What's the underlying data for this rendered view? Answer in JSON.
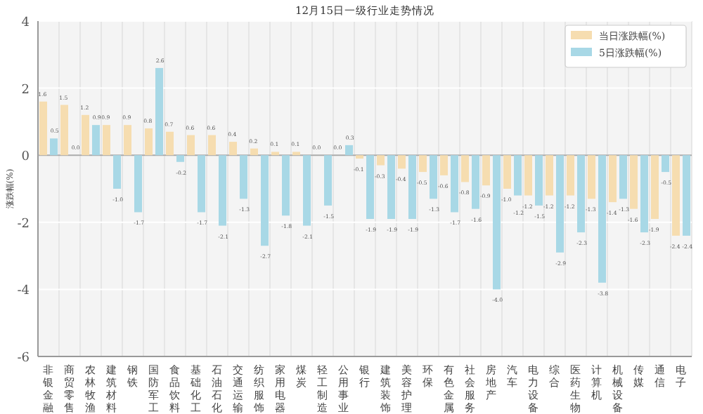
{
  "chart_data": {
    "type": "bar",
    "title": "12月15日一级行业走势情况",
    "ylabel": "涨跌幅(%)",
    "categories": [
      "非银金融",
      "商贸零售",
      "农林牧渔",
      "建筑材料",
      "钢铁",
      "国防军工",
      "食品饮料",
      "基础化工",
      "石油石化",
      "交通运输",
      "纺织服饰",
      "家用电器",
      "煤炭",
      "轻工制造",
      "公用事业",
      "银行",
      "建筑装饰",
      "美容护理",
      "环保",
      "有色金属",
      "社会服务",
      "房地产",
      "汽车",
      "电力设备",
      "综合",
      "医药生物",
      "计算机",
      "机械设备",
      "传媒",
      "通信",
      "电子"
    ],
    "series": [
      {
        "name": "当日涨跌幅(%)",
        "color": "#f6ddb0",
        "values": [
          1.6,
          1.5,
          1.2,
          0.9,
          0.9,
          0.8,
          0.7,
          0.6,
          0.6,
          0.4,
          0.2,
          0.1,
          0.1,
          0.0,
          0.0,
          -0.1,
          -0.3,
          -0.4,
          -0.5,
          -0.6,
          -0.8,
          -0.9,
          -1.0,
          -1.2,
          -1.2,
          -1.2,
          -1.3,
          -1.4,
          -1.6,
          -1.9,
          -2.4
        ],
        "value_labels": [
          "1.6",
          "1.5",
          "1.2",
          "0.9",
          "0.9",
          "0.8",
          "0.7",
          "0.6",
          "0.6",
          "0.4",
          "0.2",
          "0.1",
          "0.1",
          "0.0",
          "0.0",
          "-0.1",
          "-0.3",
          "-0.4",
          "-0.5",
          "-0.6",
          "-0.8",
          "-0.9",
          "-1.0",
          "-1.2",
          "-1.2",
          "-1.2",
          "-1.3",
          "-1.4",
          "-1.6",
          "-1.9",
          "-2.4"
        ]
      },
      {
        "name": "5日涨跌幅(%)",
        "color": "#a8d8e6",
        "values": [
          0.5,
          0.0,
          0.9,
          -1.0,
          -1.7,
          2.6,
          -0.2,
          -1.7,
          -2.1,
          -1.3,
          -2.7,
          -1.8,
          -2.1,
          -1.5,
          0.3,
          -1.9,
          -1.9,
          -1.9,
          -1.3,
          -1.7,
          -1.6,
          -4.0,
          -1.2,
          -1.5,
          -2.9,
          -2.3,
          -3.8,
          -1.3,
          -2.3,
          -0.5,
          -2.4
        ],
        "value_labels": [
          "0.5",
          "0.0",
          "0.9",
          "-1.0",
          "-1.7",
          "2.6",
          "-0.2",
          "-1.7",
          "-2.1",
          "-1.3",
          "-2.7",
          "-1.8",
          "-2.1",
          "-1.5",
          "0.3",
          "-1.9",
          "-1.9",
          "-1.9",
          "-1.3",
          "-1.7",
          "-1.6",
          "-4.0",
          "-1.2",
          "-1.5",
          "-2.9",
          "-2.3",
          "-3.8",
          "-1.3",
          "-2.3",
          "-0.5",
          "-2.4"
        ]
      }
    ],
    "ylim": [
      -6,
      4
    ],
    "yticks": [
      -6,
      -4,
      -2,
      0,
      2,
      4
    ],
    "grid": true,
    "legend": "top right"
  }
}
